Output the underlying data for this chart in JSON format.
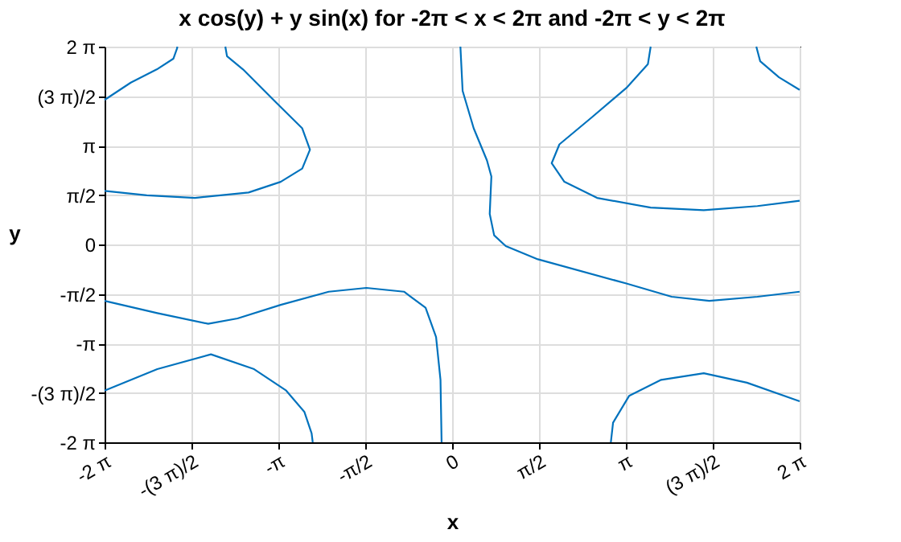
{
  "chart_data": {
    "type": "line",
    "title": "x cos(y) + y sin(x) for -2π < x < 2π and -2π < y < 2π",
    "xlabel": "x",
    "ylabel": "y",
    "xlim": [
      -6.2832,
      6.2832
    ],
    "ylim": [
      -6.2832,
      6.2832
    ],
    "xticks": [
      {
        "value": -6.2832,
        "label": "-2 π"
      },
      {
        "value": -4.7124,
        "label": "-(3 π)/2"
      },
      {
        "value": -3.1416,
        "label": "-π"
      },
      {
        "value": -1.5708,
        "label": "-π/2"
      },
      0,
      {
        "value": 1.5708,
        "label": "π/2"
      },
      {
        "value": 3.1416,
        "label": "π"
      },
      {
        "value": 4.7124,
        "label": "(3 π)/2"
      },
      {
        "value": 6.2832,
        "label": "2 π"
      }
    ],
    "yticks": [
      {
        "value": -6.2832,
        "label": "-2 π"
      },
      {
        "value": -4.7124,
        "label": "-(3 π)/2"
      },
      {
        "value": -3.1416,
        "label": "-π"
      },
      {
        "value": -1.5708,
        "label": "-π/2"
      },
      0,
      {
        "value": 1.5708,
        "label": "π/2"
      },
      {
        "value": 3.1416,
        "label": "π"
      },
      {
        "value": 4.7124,
        "label": "(3 π)/2"
      },
      {
        "value": 6.2832,
        "label": "2 π"
      }
    ],
    "grid": true,
    "legend": false,
    "line_style": "solid",
    "marker": "none",
    "series": [
      {
        "color": "#0072bd",
        "x": [
          -6.2832,
          -5.81,
          -5.34,
          -5.04,
          -4.97,
          -4.97
        ],
        "values": [
          4.59,
          5.14,
          5.56,
          5.9,
          6.24,
          6.2832
        ]
      },
      {
        "color": "#0072bd",
        "x": [
          -4.1,
          -4.07,
          -3.78,
          -3.2,
          -2.71,
          -2.57,
          -2.71,
          -3.1,
          -3.68,
          -4.65,
          -5.52,
          -6.2832
        ],
        "values": [
          6.2832,
          5.98,
          5.56,
          4.54,
          3.69,
          3.01,
          2.41,
          1.99,
          1.65,
          1.48,
          1.56,
          1.7
        ]
      },
      {
        "color": "#0072bd",
        "x": [
          0.15,
          0.19,
          0.39,
          0.63,
          0.71,
          0.68,
          0.76,
          0.97,
          1.55,
          3.15,
          3.97,
          4.65,
          5.52,
          6.2832
        ],
        "values": [
          6.2832,
          4.88,
          3.69,
          2.67,
          2.16,
          0.97,
          0.29,
          -0.05,
          -0.47,
          -1.24,
          -1.66,
          -1.79,
          -1.66,
          -1.5
        ]
      },
      {
        "color": "#0072bd",
        "x": [
          3.59,
          3.54,
          3.15,
          2.52,
          1.94,
          1.8,
          2.03,
          2.62,
          3.59,
          4.55,
          5.52,
          6.2832
        ],
        "values": [
          6.2832,
          5.73,
          4.97,
          4.03,
          3.18,
          2.58,
          1.99,
          1.48,
          1.17,
          1.09,
          1.22,
          1.39
        ]
      },
      {
        "color": "#0072bd",
        "x": [
          5.5,
          5.57,
          5.91,
          6.2832
        ],
        "values": [
          6.2832,
          5.82,
          5.31,
          4.91
        ]
      },
      {
        "color": "#0072bd",
        "x": [
          -6.2832,
          -5.33,
          -4.41,
          -3.88,
          -3.1,
          -2.23,
          -1.55,
          -0.87,
          -0.48,
          -0.29,
          -0.21,
          -0.19
        ],
        "values": [
          -1.79,
          -2.18,
          -2.52,
          -2.35,
          -1.92,
          -1.5,
          -1.38,
          -1.5,
          -2.01,
          -2.94,
          -4.3,
          -6.2832
        ]
      },
      {
        "color": "#0072bd",
        "x": [
          -6.2832,
          -5.33,
          -4.36,
          -3.58,
          -3.0,
          -2.67,
          -2.54,
          -2.52
        ],
        "values": [
          -4.64,
          -3.96,
          -3.49,
          -3.96,
          -4.64,
          -5.32,
          -6.0,
          -6.2832
        ]
      },
      {
        "color": "#0072bd",
        "x": [
          2.87,
          2.91,
          3.2,
          3.78,
          4.55,
          5.33,
          6.2832
        ],
        "values": [
          -6.2832,
          -5.66,
          -4.81,
          -4.3,
          -4.09,
          -4.39,
          -4.98
        ]
      }
    ]
  }
}
